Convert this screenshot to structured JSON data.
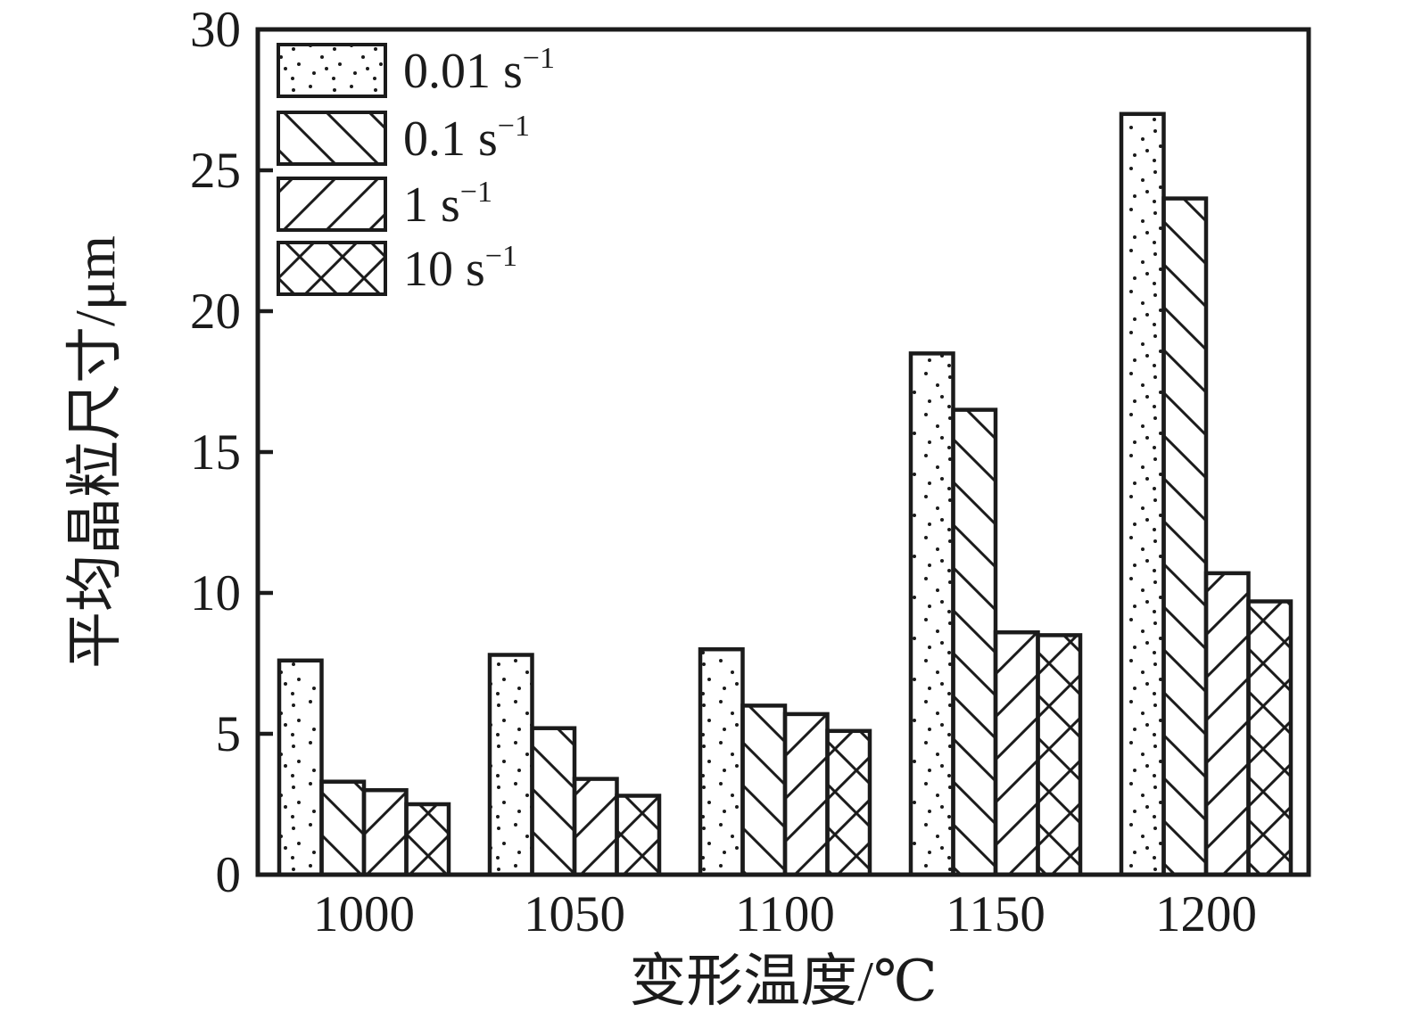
{
  "figure": {
    "background": "#ffffff",
    "ink_color": "#1b1b1b"
  },
  "chart_data": {
    "type": "bar",
    "title": "",
    "xlabel": "变形温度/℃",
    "ylabel": "平均晶粒尺寸/μm",
    "categories": [
      "1000",
      "1050",
      "1100",
      "1150",
      "1200"
    ],
    "y_tick_labels": [
      "0",
      "5",
      "10",
      "15",
      "20",
      "25",
      "30"
    ],
    "y_ticks": [
      0,
      5,
      10,
      15,
      20,
      25,
      30
    ],
    "ylim": [
      0,
      30
    ],
    "grid": false,
    "legend_position": "top-left-inside",
    "series": [
      {
        "name": "0.01 s⁻¹",
        "label_base": "0.01 s",
        "label_exp": "−1",
        "pattern": "dots",
        "values": [
          7.6,
          7.8,
          8.0,
          18.5,
          27.0
        ]
      },
      {
        "name": "0.1 s⁻¹",
        "label_base": "0.1 s",
        "label_exp": "−1",
        "pattern": "backslash",
        "values": [
          3.3,
          5.2,
          6.0,
          16.5,
          24.0
        ]
      },
      {
        "name": "1 s⁻¹",
        "label_base": "1 s",
        "label_exp": "−1",
        "pattern": "slash",
        "values": [
          3.0,
          3.4,
          5.7,
          8.6,
          10.7
        ]
      },
      {
        "name": "10 s⁻¹",
        "label_base": "10 s",
        "label_exp": "−1",
        "pattern": "crosshatch",
        "values": [
          2.5,
          2.8,
          5.1,
          8.5,
          9.7
        ]
      }
    ]
  }
}
